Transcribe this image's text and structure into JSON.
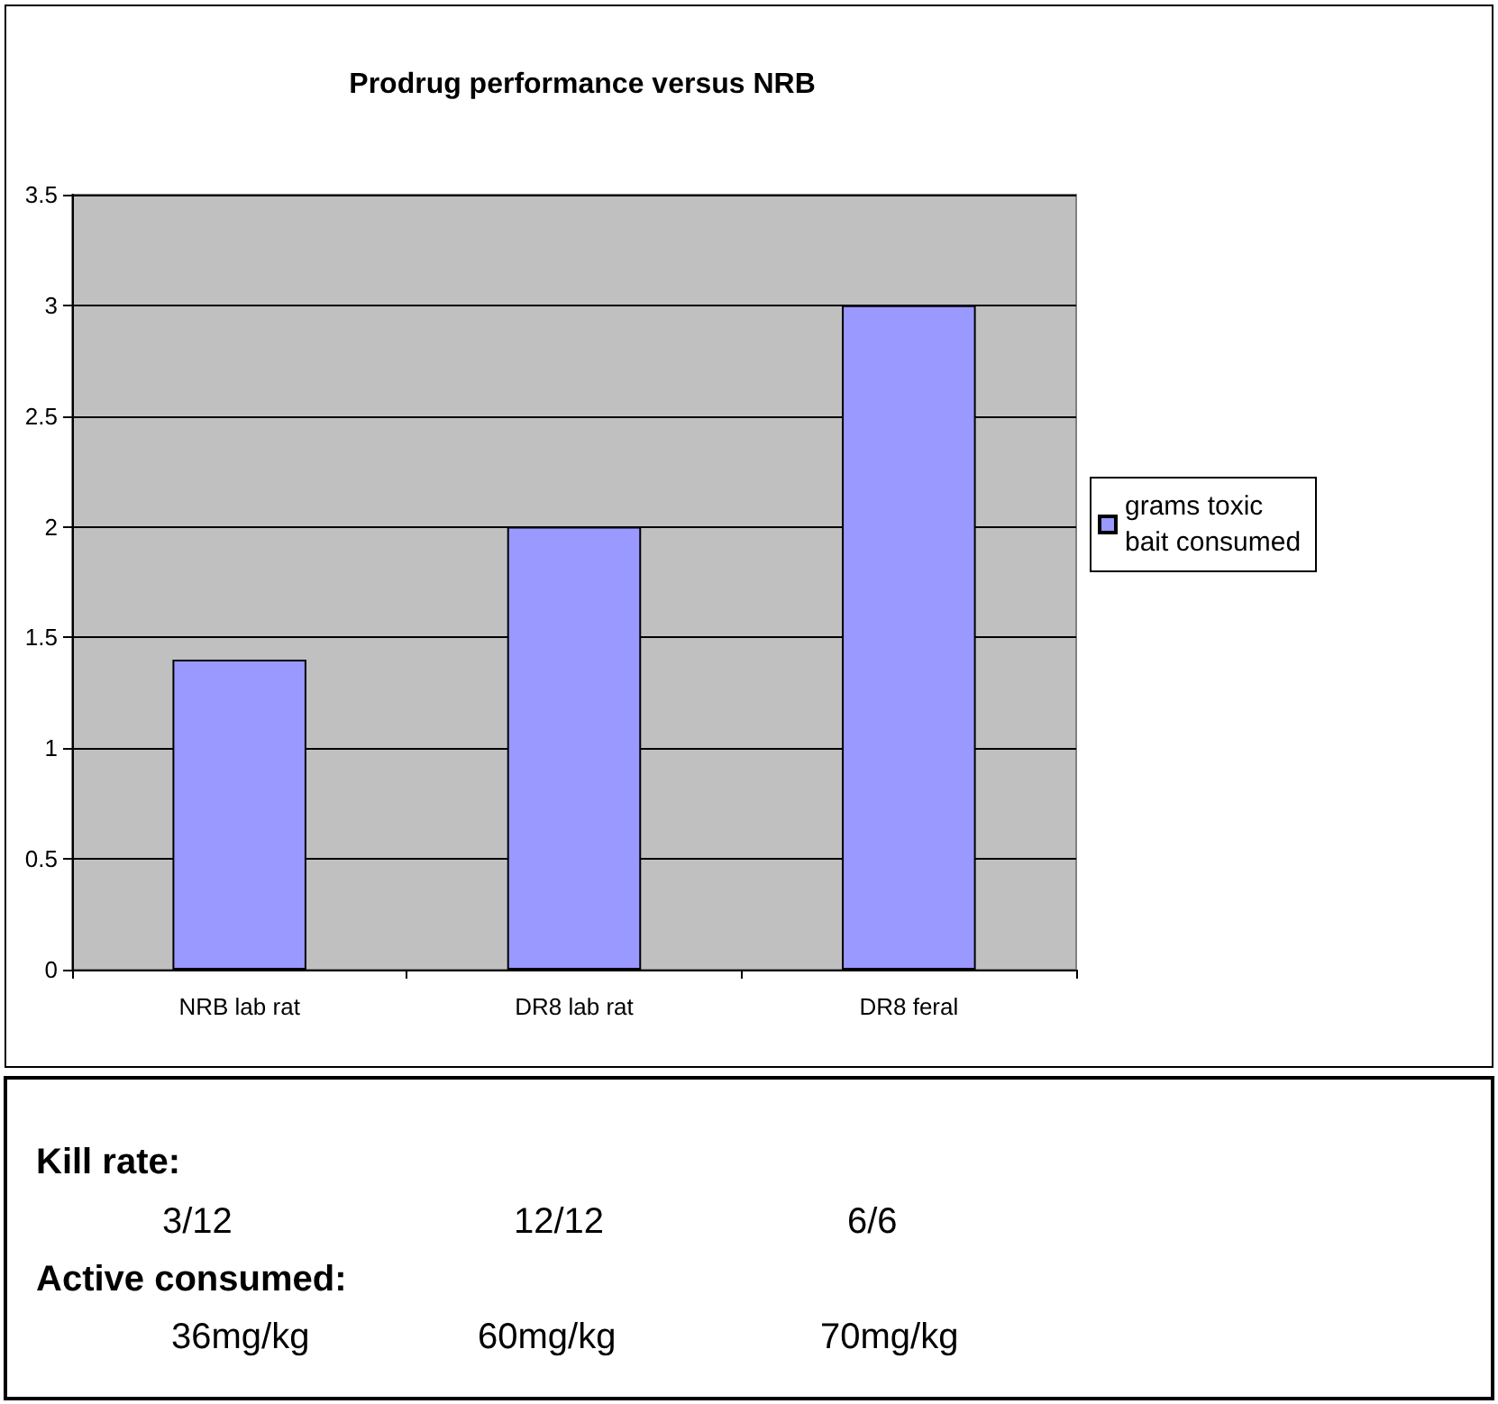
{
  "chart_data": {
    "type": "bar",
    "title": "Prodrug performance versus NRB",
    "categories": [
      "NRB lab rat",
      "DR8 lab rat",
      "DR8 feral"
    ],
    "series": [
      {
        "name": "grams toxic bait consumed",
        "color": "#9999ff",
        "values": [
          1.4,
          2,
          3
        ]
      }
    ],
    "ylim": [
      0,
      3.5
    ],
    "yticks": [
      0,
      0.5,
      1,
      1.5,
      2,
      2.5,
      3,
      3.5
    ],
    "grid": "y",
    "legend": "right",
    "annotations": [
      "Kill rate:",
      "3/12",
      "12/12",
      "6/6",
      "Active consumed:",
      "36mg/kg",
      "60mg/kg",
      "70mg/kg"
    ]
  }
}
